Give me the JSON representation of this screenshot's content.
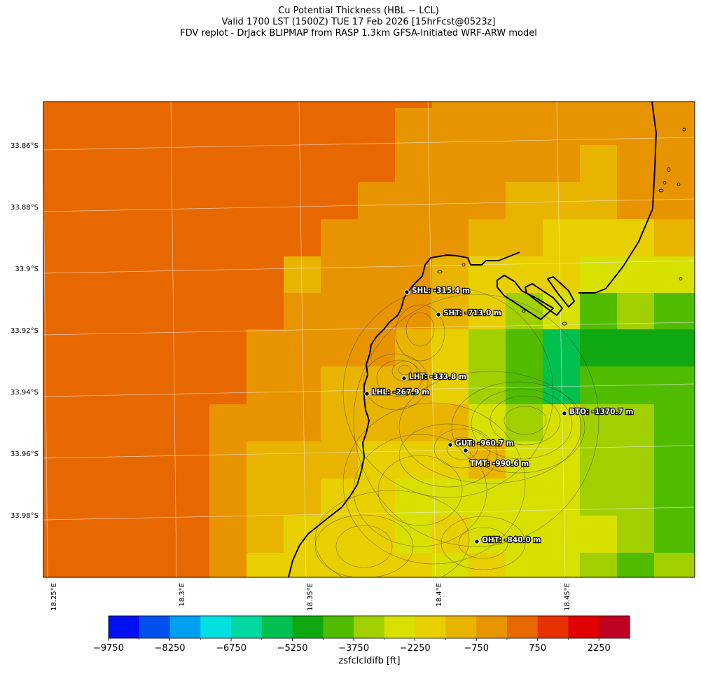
{
  "title": {
    "line1": "Cu Potential Thickness (HBL − LCL)",
    "line2": "Valid 1700 LST (1500Z) TUE 17 Feb 2026 [15hrFcst@0523z]",
    "line3": "FDV replot - DrJack BLIPMAP from RASP 1.3km GFSA-Initiated WRF-ARW model"
  },
  "map": {
    "lat_labels": [
      "33.86°S",
      "33.88°S",
      "33.9°S",
      "33.92°S",
      "33.94°S",
      "33.96°S",
      "33.98°S"
    ],
    "lon_labels": [
      "18.25°E",
      "18.3°E",
      "18.35°E",
      "18.4°E",
      "18.45°E"
    ],
    "stations": [
      {
        "id": "SHL",
        "label": "SHL: -315.4 m"
      },
      {
        "id": "SHT",
        "label": "SHT: -713.0 m"
      },
      {
        "id": "LHT",
        "label": "LHT: -333.8 m"
      },
      {
        "id": "LHL",
        "label": "LHL: -267.9 m"
      },
      {
        "id": "BTO",
        "label": "BTO: -1370.7 m"
      },
      {
        "id": "GUT",
        "label": "GUT: -960.7 m"
      },
      {
        "id": "TMT",
        "label": "TMT: -990.6 m"
      },
      {
        "id": "OHT",
        "label": "OHT: -840.0 m"
      }
    ]
  },
  "colorbar": {
    "label": "zsfclcldifb [ft]",
    "ticks": [
      "−9750",
      "−8250",
      "−6750",
      "−5250",
      "−3750",
      "−2250",
      "−750",
      "750",
      "2250"
    ],
    "colors": [
      "#0010f0",
      "#0050f0",
      "#00a0f0",
      "#00e0e0",
      "#00d8a0",
      "#00c050",
      "#10a810",
      "#50bc00",
      "#a0d000",
      "#d8e000",
      "#e8d000",
      "#e8b400",
      "#e89400",
      "#e86800",
      "#e83000",
      "#e00000",
      "#c00020"
    ]
  }
}
